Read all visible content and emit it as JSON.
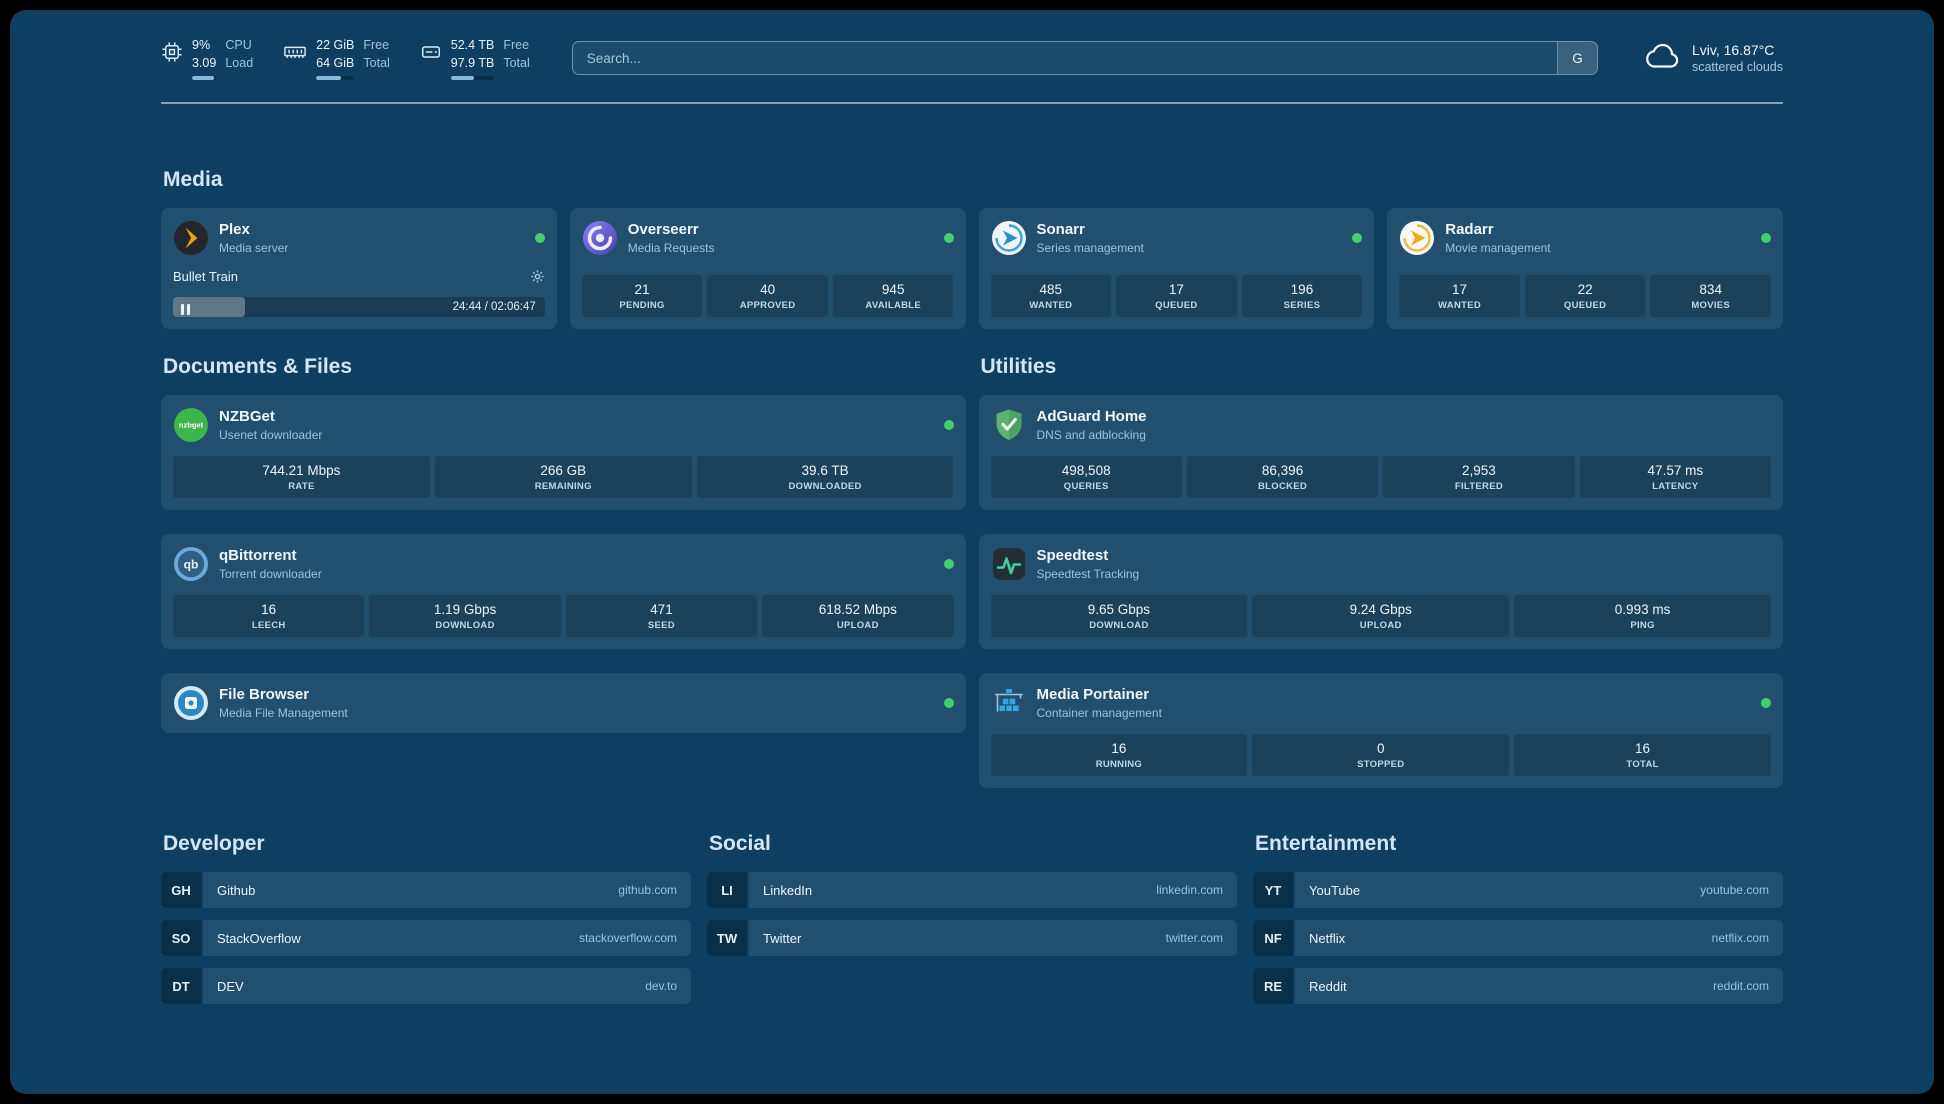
{
  "colors": {
    "background": "#0e3f61",
    "status_online": "#41d06b",
    "domain_link": "#8fc6e8",
    "plex_accent": "#e5a00d"
  },
  "topbar": {
    "cpu": {
      "icon": "cpu-icon",
      "value_top": "9%",
      "value_bottom": "3.09",
      "label_top": "CPU",
      "label_bottom": "Load",
      "bar_pct": 90
    },
    "memory": {
      "icon": "memory-icon",
      "value_top": "22 GiB",
      "value_bottom": "64 GiB",
      "label_top": "Free",
      "label_bottom": "Total",
      "bar_pct": 66
    },
    "disk": {
      "icon": "disk-icon",
      "value_top": "52.4 TB",
      "value_bottom": "97.9 TB",
      "label_top": "Free",
      "label_bottom": "Total",
      "bar_pct": 54
    },
    "search": {
      "placeholder": "Search...",
      "button_label": "G"
    },
    "weather": {
      "icon": "cloud-icon",
      "location": "Lviv, 16.87°C",
      "condition": "scattered clouds"
    }
  },
  "media": {
    "heading": "Media",
    "plex": {
      "icon": "plex-icon",
      "title": "Plex",
      "subtitle": "Media server",
      "now_playing": "Bullet Train",
      "time": "24:44 / 02:06:47",
      "progress_pct": 19.5
    },
    "overseerr": {
      "icon": "overseerr-icon",
      "title": "Overseerr",
      "subtitle": "Media Requests",
      "stats": [
        {
          "value": "21",
          "label": "PENDING"
        },
        {
          "value": "40",
          "label": "APPROVED"
        },
        {
          "value": "945",
          "label": "AVAILABLE"
        }
      ]
    },
    "sonarr": {
      "icon": "sonarr-icon",
      "title": "Sonarr",
      "subtitle": "Series management",
      "stats": [
        {
          "value": "485",
          "label": "WANTED"
        },
        {
          "value": "17",
          "label": "QUEUED"
        },
        {
          "value": "196",
          "label": "SERIES"
        }
      ]
    },
    "radarr": {
      "icon": "radarr-icon",
      "title": "Radarr",
      "subtitle": "Movie management",
      "stats": [
        {
          "value": "17",
          "label": "WANTED"
        },
        {
          "value": "22",
          "label": "QUEUED"
        },
        {
          "value": "834",
          "label": "MOVIES"
        }
      ]
    }
  },
  "documents": {
    "heading": "Documents & Files",
    "nzbget": {
      "icon": "nzbget-icon",
      "title": "NZBGet",
      "subtitle": "Usenet downloader",
      "stats": [
        {
          "value": "744.21 Mbps",
          "label": "RATE"
        },
        {
          "value": "266 GB",
          "label": "REMAINING"
        },
        {
          "value": "39.6 TB",
          "label": "DOWNLOADED"
        }
      ]
    },
    "qbittorrent": {
      "icon": "qbittorrent-icon",
      "title": "qBittorrent",
      "subtitle": "Torrent downloader",
      "stats": [
        {
          "value": "16",
          "label": "LEECH"
        },
        {
          "value": "1.19 Gbps",
          "label": "DOWNLOAD"
        },
        {
          "value": "471",
          "label": "SEED"
        },
        {
          "value": "618.52 Mbps",
          "label": "UPLOAD"
        }
      ]
    },
    "filebrowser": {
      "icon": "filebrowser-icon",
      "title": "File Browser",
      "subtitle": "Media File Management"
    }
  },
  "utilities": {
    "heading": "Utilities",
    "adguard": {
      "icon": "adguard-icon",
      "title": "AdGuard Home",
      "subtitle": "DNS and adblocking",
      "stats": [
        {
          "value": "498,508",
          "label": "QUERIES"
        },
        {
          "value": "86,396",
          "label": "BLOCKED"
        },
        {
          "value": "2,953",
          "label": "FILTERED"
        },
        {
          "value": "47.57 ms",
          "label": "LATENCY"
        }
      ]
    },
    "speedtest": {
      "icon": "speedtest-icon",
      "title": "Speedtest",
      "subtitle": "Speedtest Tracking",
      "stats": [
        {
          "value": "9.65 Gbps",
          "label": "DOWNLOAD"
        },
        {
          "value": "9.24 Gbps",
          "label": "UPLOAD"
        },
        {
          "value": "0.993 ms",
          "label": "PING"
        }
      ]
    },
    "portainer": {
      "icon": "portainer-icon",
      "title": "Media Portainer",
      "subtitle": "Container management",
      "stats": [
        {
          "value": "16",
          "label": "RUNNING"
        },
        {
          "value": "0",
          "label": "STOPPED"
        },
        {
          "value": "16",
          "label": "TOTAL"
        }
      ]
    }
  },
  "bookmarks": {
    "developer": {
      "heading": "Developer",
      "items": [
        {
          "abbr": "GH",
          "name": "Github",
          "domain": "github.com"
        },
        {
          "abbr": "SO",
          "name": "StackOverflow",
          "domain": "stackoverflow.com"
        },
        {
          "abbr": "DT",
          "name": "DEV",
          "domain": "dev.to"
        }
      ]
    },
    "social": {
      "heading": "Social",
      "items": [
        {
          "abbr": "LI",
          "name": "LinkedIn",
          "domain": "linkedin.com"
        },
        {
          "abbr": "TW",
          "name": "Twitter",
          "domain": "twitter.com"
        }
      ]
    },
    "entertainment": {
      "heading": "Entertainment",
      "items": [
        {
          "abbr": "YT",
          "name": "YouTube",
          "domain": "youtube.com"
        },
        {
          "abbr": "NF",
          "name": "Netflix",
          "domain": "netflix.com"
        },
        {
          "abbr": "RE",
          "name": "Reddit",
          "domain": "reddit.com"
        }
      ]
    }
  }
}
